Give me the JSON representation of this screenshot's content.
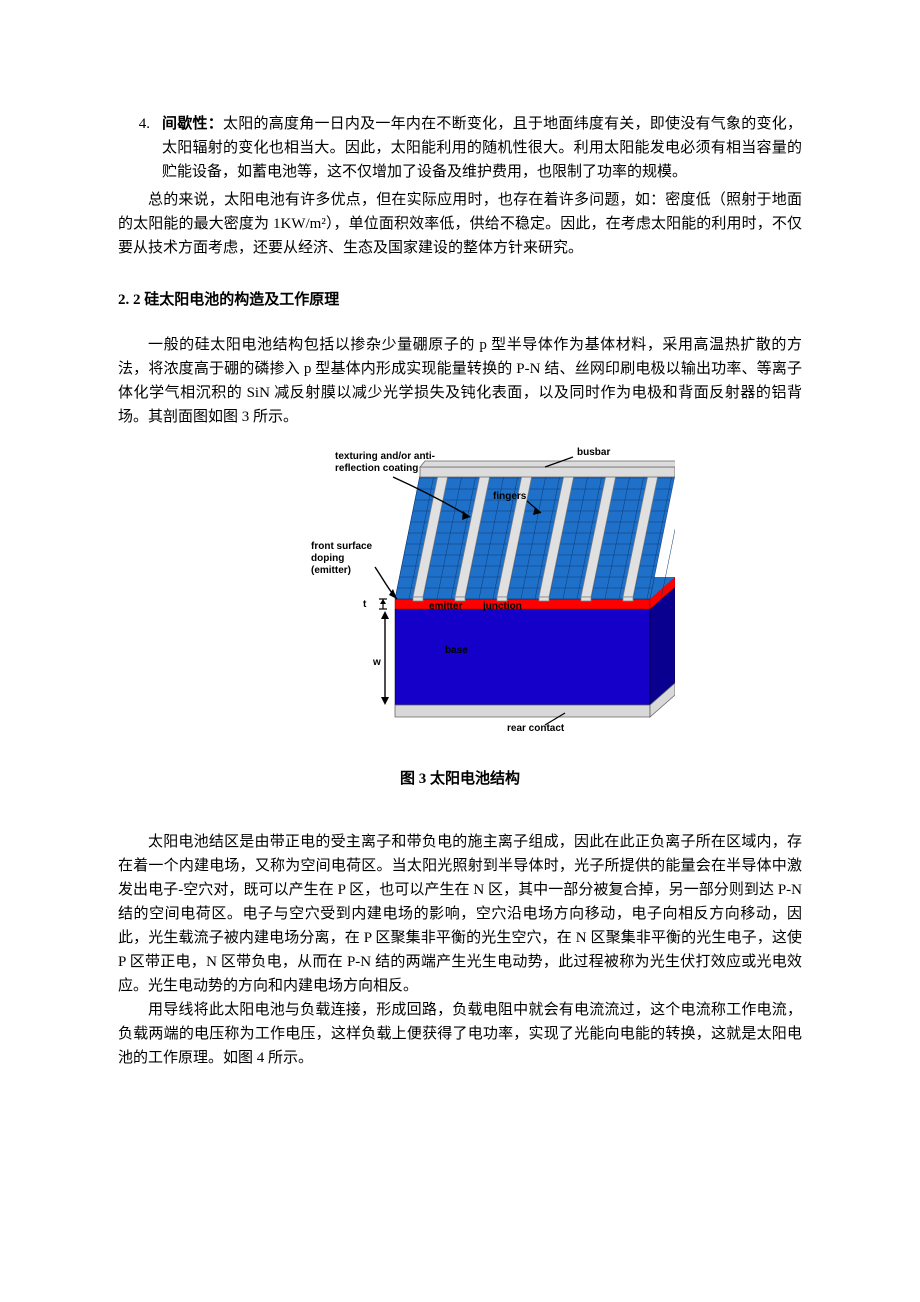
{
  "list": {
    "number": "4.",
    "label": "间歇性：",
    "text": "太阳的高度角一日内及一年内在不断变化，且于地面纬度有关，即使没有气象的变化，太阳辐射的变化也相当大。因此，太阳能利用的随机性很大。利用太阳能发电必须有相当容量的贮能设备，如蓄电池等，这不仅增加了设备及维护费用，也限制了功率的规模。"
  },
  "summary": "总的来说，太阳电池有许多优点，但在实际应用时，也存在着许多问题，如：密度低（照射于地面的太阳能的最大密度为 1KW/m²），单位面积效率低，供给不稳定。因此，在考虑太阳能的利用时，不仅要从技术方面考虑，还要从经济、生态及国家建设的整体方针来研究。",
  "section_title": "2. 2 硅太阳电池的构造及工作原理",
  "para_intro": "一般的硅太阳电池结构包括以掺杂少量硼原子的 p 型半导体作为基体材料，采用高温热扩散的方法，将浓度高于硼的磷掺入 p 型基体内形成实现能量转换的 P-N 结、丝网印刷电极以输出功率、等离子体化学气相沉积的 SiN 减反射膜以减少光学损失及钝化表面，以及同时作为电极和背面反射器的铝背场。其剖面图如图 3 所示。",
  "diagram": {
    "labels": {
      "busbar": "busbar",
      "texturing": "texturing and/or\nanti-reflection coating",
      "fingers": "fingers",
      "front_doping": "front surface\ndoping\n(emitter)",
      "t": "t",
      "emitter": "emitter",
      "junction": "junction",
      "base": "base",
      "w": "w",
      "rear": "rear contact"
    },
    "colors": {
      "busbar_fill": "#dcdcdc",
      "busbar_stroke": "#666666",
      "finger_fill": "#e0e0e0",
      "finger_stroke": "#808080",
      "top_cells": "#1e70c8",
      "top_cells_border": "#000000",
      "emitter": "#ff0000",
      "base_front": "#1400c8",
      "base_side": "#0a0090",
      "rear_fill": "#d8d8d8",
      "rear_stroke": "#666666",
      "arrow": "#000000",
      "label_text": "#000000"
    }
  },
  "figure_caption": "图 3   太阳电池结构",
  "para_after1": "太阳电池结区是由带正电的受主离子和带负电的施主离子组成，因此在此正负离子所在区域内，存在着一个内建电场，又称为空间电荷区。当太阳光照射到半导体时，光子所提供的能量会在半导体中激发出电子-空穴对，既可以产生在 P 区，也可以产生在 N 区，其中一部分被复合掉，另一部分则到达 P-N 结的空间电荷区。电子与空穴受到内建电场的影响，空穴沿电场方向移动，电子向相反方向移动，因此，光生载流子被内建电场分离，在 P 区聚集非平衡的光生空穴，在 N 区聚集非平衡的光生电子，这使 P 区带正电，N 区带负电，从而在 P-N 结的两端产生光生电动势，此过程被称为光生伏打效应或光电效应。光生电动势的方向和内建电场方向相反。",
  "para_after2": "用导线将此太阳电池与负载连接，形成回路，负载电阻中就会有电流流过，这个电流称工作电流，负载两端的电压称为工作电压，这样负载上便获得了电功率，实现了光能向电能的转换，这就是太阳电池的工作原理。如图 4 所示。"
}
